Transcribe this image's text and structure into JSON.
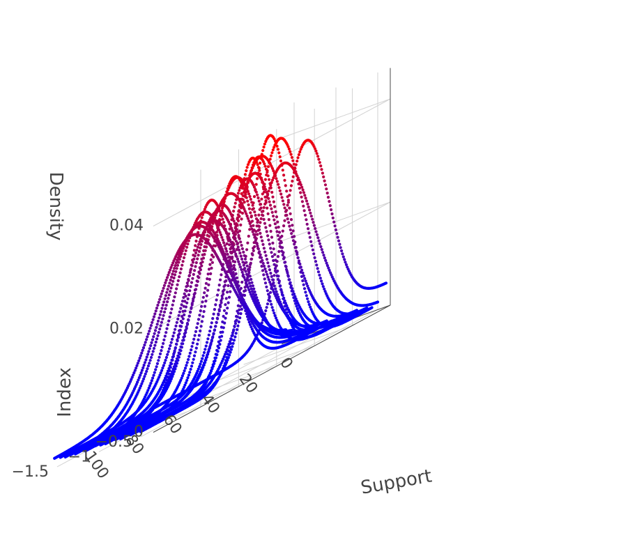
{
  "chart_data": {
    "type": "scatter3d",
    "title": "",
    "axes": {
      "x": {
        "title": "Support",
        "range": [
          0,
          125
        ],
        "ticks": [
          0,
          20,
          40,
          60,
          80,
          100
        ]
      },
      "y": {
        "title": "Index",
        "range": [
          -1.65,
          -0.35
        ],
        "ticks": [
          -1.5,
          -1,
          -0.5
        ],
        "tick_labels": [
          "−1.5",
          "−1",
          "−0.5"
        ]
      },
      "z": {
        "title": "Density",
        "range": [
          0,
          0.046
        ],
        "ticks": [
          0,
          0.02,
          0.04
        ]
      }
    },
    "color_scale": {
      "low": "#0000ff",
      "high": "#ff0000",
      "variable": "Density"
    },
    "grid": true,
    "curves": [
      {
        "index": -0.4,
        "peak": 42,
        "width": 12,
        "height": 0.036,
        "tail": 0.0045
      },
      {
        "index": -0.5,
        "peak": 50,
        "width": 16,
        "height": 0.037,
        "tail": 0.0012
      },
      {
        "index": -0.57,
        "peak": 54,
        "width": 11,
        "height": 0.044,
        "tail": 0.0008
      },
      {
        "index": -0.63,
        "peak": 46,
        "width": 13,
        "height": 0.042,
        "tail": 0.001
      },
      {
        "index": -0.69,
        "peak": 58,
        "width": 10,
        "height": 0.041,
        "tail": 0.0009
      },
      {
        "index": -0.75,
        "peak": 51,
        "width": 15,
        "height": 0.04,
        "tail": 0.0012
      },
      {
        "index": -0.81,
        "peak": 62,
        "width": 12,
        "height": 0.039,
        "tail": 0.0008
      },
      {
        "index": -0.87,
        "peak": 47,
        "width": 11,
        "height": 0.04,
        "tail": 0.001
      },
      {
        "index": -0.93,
        "peak": 56,
        "width": 14,
        "height": 0.038,
        "tail": 0.0011
      },
      {
        "index": -0.99,
        "peak": 44,
        "width": 13,
        "height": 0.037,
        "tail": 0.0009
      },
      {
        "index": -1.05,
        "peak": 64,
        "width": 12,
        "height": 0.036,
        "tail": 0.001
      },
      {
        "index": -1.11,
        "peak": 52,
        "width": 16,
        "height": 0.035,
        "tail": 0.0012
      },
      {
        "index": -1.17,
        "peak": 40,
        "width": 12,
        "height": 0.036,
        "tail": 0.0011
      },
      {
        "index": -1.23,
        "peak": 60,
        "width": 15,
        "height": 0.034,
        "tail": 0.0009
      },
      {
        "index": -1.29,
        "peak": 48,
        "width": 13,
        "height": 0.033,
        "tail": 0.0013
      },
      {
        "index": -1.35,
        "peak": 57,
        "width": 17,
        "height": 0.032,
        "tail": 0.001
      },
      {
        "index": -1.41,
        "peak": 45,
        "width": 14,
        "height": 0.032,
        "tail": 0.0012
      },
      {
        "index": -1.47,
        "peak": 53,
        "width": 18,
        "height": 0.031,
        "tail": 0.0011
      },
      {
        "index": -1.53,
        "peak": 42,
        "width": 15,
        "height": 0.03,
        "tail": 0.0014
      },
      {
        "index": -1.6,
        "peak": 50,
        "width": 19,
        "height": 0.029,
        "tail": 0.0016
      }
    ]
  }
}
